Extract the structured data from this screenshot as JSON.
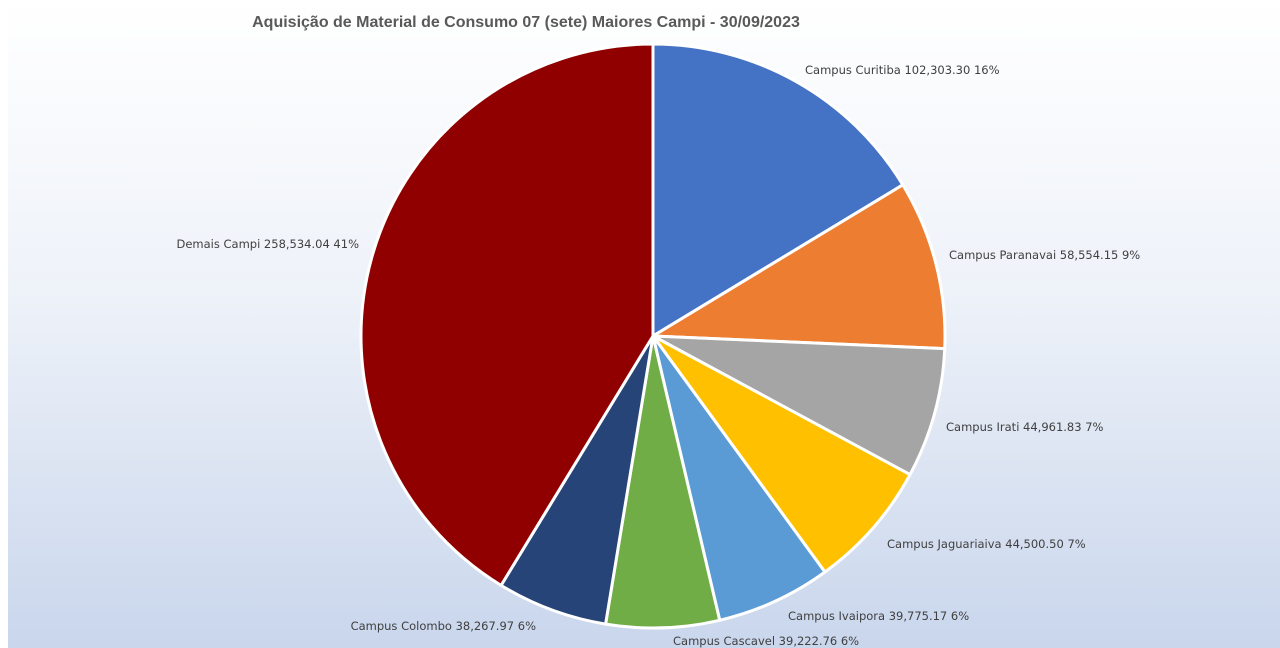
{
  "chart_data": {
    "type": "pie",
    "title": "Aquisição de Material de Consumo 07 (sete) Maiores Campi - 30/09/2023",
    "slices": [
      {
        "name": "Campus Curitiba",
        "value_label": "102,303.30",
        "value": 102303.3,
        "percent_label": "16%",
        "color": "#4472c4"
      },
      {
        "name": "Campus Paranavai",
        "value_label": "58,554.15",
        "value": 58554.15,
        "percent_label": "9%",
        "color": "#ed7d31"
      },
      {
        "name": "Campus Irati",
        "value_label": "44,961.83",
        "value": 44961.83,
        "percent_label": "7%",
        "color": "#a5a5a5"
      },
      {
        "name": "Campus Jaguariaiva",
        "value_label": "44,500.50",
        "value": 44500.5,
        "percent_label": "7%",
        "color": "#ffc000"
      },
      {
        "name": "Campus Ivaipora",
        "value_label": "39,775.17",
        "value": 39775.17,
        "percent_label": "6%",
        "color": "#5b9bd5"
      },
      {
        "name": "Campus Cascavel",
        "value_label": "39,222.76",
        "value": 39222.76,
        "percent_label": "6%",
        "color": "#70ad47"
      },
      {
        "name": "Campus Colombo",
        "value_label": "38,267.97",
        "value": 38267.97,
        "percent_label": "6%",
        "color": "#264478"
      },
      {
        "name": "Demais Campi",
        "value_label": "258,534.04",
        "value": 258534.04,
        "percent_label": "41%",
        "color": "#900000"
      }
    ],
    "legend": "none",
    "data_labels": "outside"
  }
}
